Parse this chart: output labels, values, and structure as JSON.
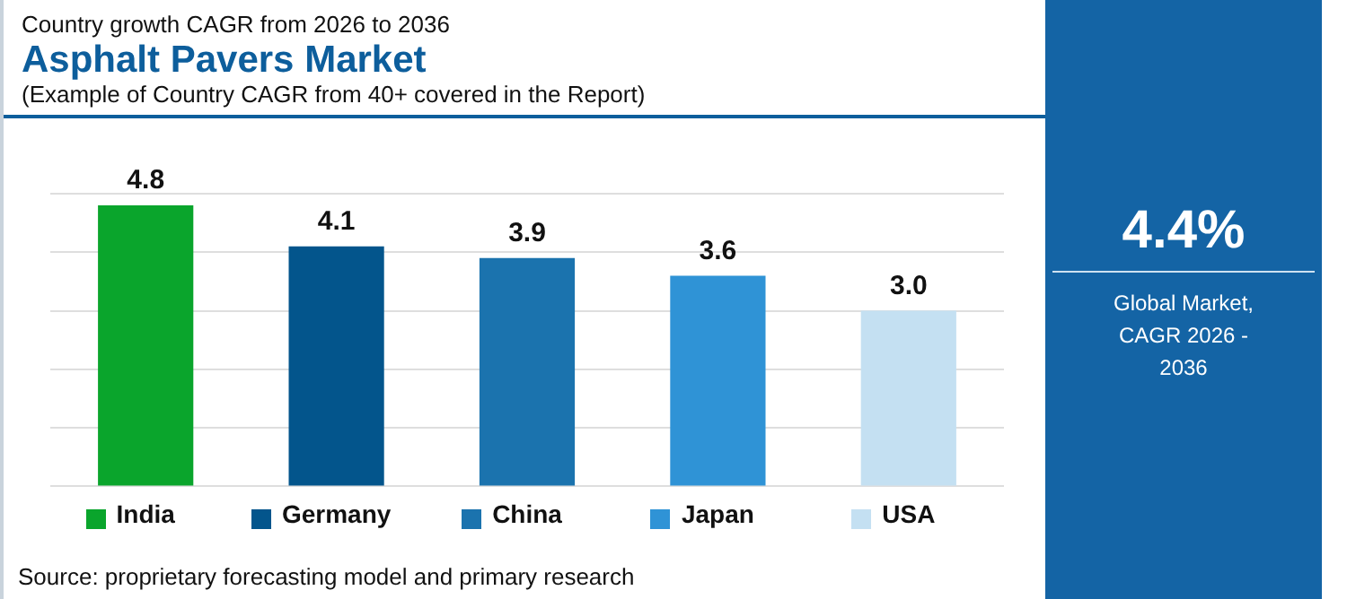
{
  "chart_data": [
    {
      "type": "bar",
      "title": "Asphalt Pavers Market",
      "subtitle": "(Example of Country CAGR from 40+ covered in the Report)",
      "annotations": [
        "Country growth CAGR from 2026 to 2036",
        "Source: proprietary forecasting model and primary research"
      ],
      "categories": [
        "India",
        "Germany",
        "China",
        "Japan",
        "USA"
      ],
      "values": [
        4.8,
        4.1,
        3.9,
        3.6,
        3.0
      ],
      "value_labels": [
        "4.8",
        "4.1",
        "3.9",
        "3.6",
        "3.0"
      ],
      "colors": [
        "#0aa52c",
        "#03558c",
        "#1b73ae",
        "#2f93d6",
        "#c4e0f2"
      ],
      "ylim": [
        0,
        5
      ],
      "yticks": [
        {
          "value": 0,
          "label": null
        },
        {
          "value": 1,
          "label": null
        },
        {
          "value": 2,
          "label": null
        },
        {
          "value": 3,
          "label": null
        },
        {
          "value": 4,
          "label": null
        },
        {
          "value": 5,
          "label": null
        }
      ],
      "grid": "y"
    },
    {
      "type": "other",
      "title": "4.4%",
      "subtitle": "Global Market, CAGR 2026 - 2036"
    }
  ]
}
